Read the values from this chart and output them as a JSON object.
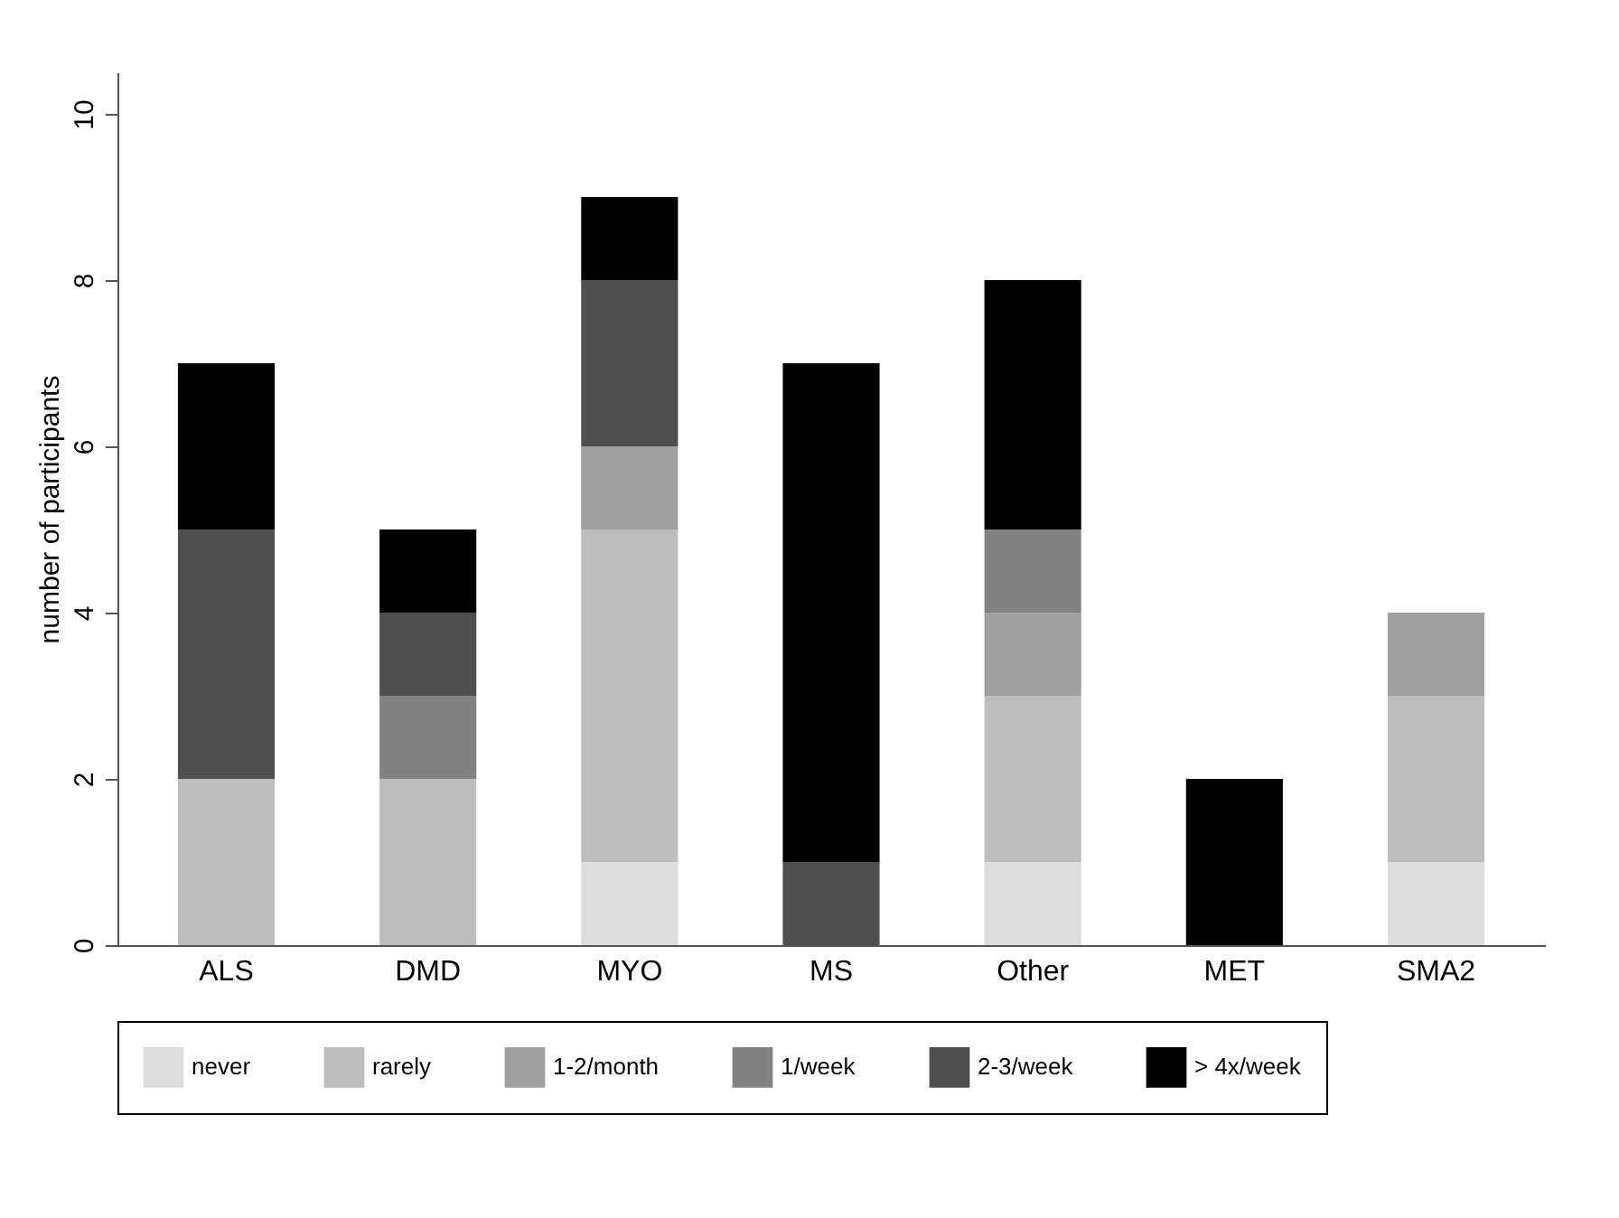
{
  "chart_data": {
    "type": "bar",
    "stacked": true,
    "ylabel": "number of participants",
    "categories": [
      "ALS",
      "DMD",
      "MYO",
      "MS",
      "Other",
      "MET",
      "SMA2"
    ],
    "series": [
      {
        "name": "never",
        "color": "#dddddd",
        "values": [
          null,
          null,
          1,
          null,
          1,
          null,
          1
        ]
      },
      {
        "name": "rarely",
        "color": "#bdbdbd",
        "values": [
          2,
          2,
          4,
          null,
          2,
          null,
          2
        ]
      },
      {
        "name": "1-2/month",
        "color": "#a0a0a0",
        "values": [
          null,
          null,
          1,
          null,
          1,
          null,
          1
        ]
      },
      {
        "name": "1/week",
        "color": "#828282",
        "values": [
          null,
          1,
          null,
          null,
          1,
          null,
          null
        ]
      },
      {
        "name": "2-3/week",
        "color": "#4f4f4f",
        "values": [
          3,
          1,
          2,
          1,
          null,
          null,
          null
        ]
      },
      {
        "name": "> 4x/week",
        "color": "#000000",
        "values": [
          2,
          1,
          1,
          6,
          3,
          2,
          null
        ]
      }
    ],
    "ylim": [
      0,
      10.5
    ],
    "yticks": [
      0,
      2,
      4,
      6,
      8,
      10
    ],
    "grid": false,
    "legend": "bottom"
  }
}
